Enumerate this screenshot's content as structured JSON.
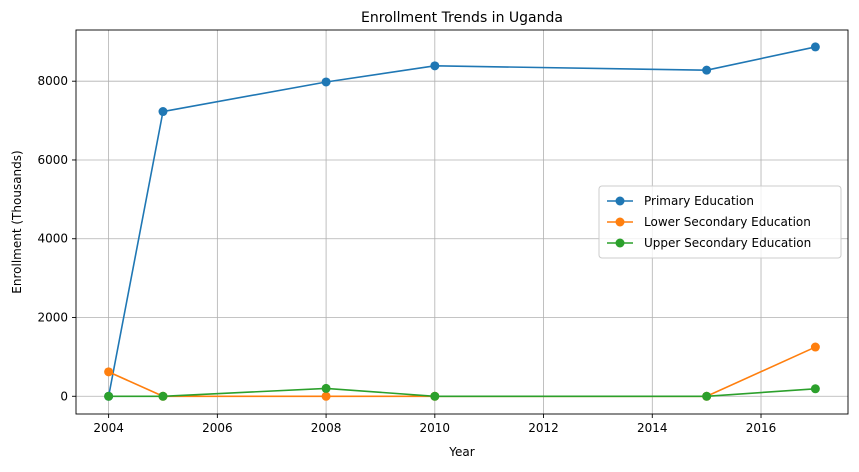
{
  "chart_data": {
    "type": "line",
    "title": "Enrollment Trends in Uganda",
    "xlabel": "Year",
    "ylabel": "Enrollment (Thousands)",
    "xlim": [
      2003.4,
      2017.6
    ],
    "ylim": [
      -450,
      9300
    ],
    "x_ticks": [
      2004,
      2006,
      2008,
      2010,
      2012,
      2014,
      2016
    ],
    "y_ticks": [
      0,
      2000,
      4000,
      6000,
      8000
    ],
    "grid": true,
    "legend_position": "center-right",
    "series": [
      {
        "name": "Primary Education",
        "color": "#1f77b4",
        "marker": "circle",
        "points": [
          {
            "x": 2004,
            "y": 0
          },
          {
            "x": 2005,
            "y": 7230
          },
          {
            "x": 2008,
            "y": 7980
          },
          {
            "x": 2010,
            "y": 8390
          },
          {
            "x": 2015,
            "y": 8280
          },
          {
            "x": 2017,
            "y": 8870
          }
        ]
      },
      {
        "name": "Lower Secondary Education",
        "color": "#ff7f0e",
        "marker": "circle",
        "points": [
          {
            "x": 2004,
            "y": 620
          },
          {
            "x": 2005,
            "y": 0
          },
          {
            "x": 2008,
            "y": 0
          },
          {
            "x": 2010,
            "y": 0
          },
          {
            "x": 2015,
            "y": 0
          },
          {
            "x": 2017,
            "y": 1250
          }
        ]
      },
      {
        "name": "Upper Secondary Education",
        "color": "#2ca02c",
        "marker": "circle",
        "points": [
          {
            "x": 2004,
            "y": 0
          },
          {
            "x": 2005,
            "y": 0
          },
          {
            "x": 2008,
            "y": 200
          },
          {
            "x": 2010,
            "y": 0
          },
          {
            "x": 2015,
            "y": 0
          },
          {
            "x": 2017,
            "y": 190
          }
        ]
      }
    ]
  }
}
